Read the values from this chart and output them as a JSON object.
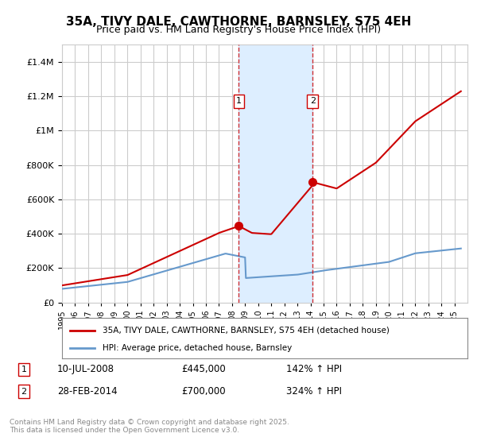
{
  "title": "35A, TIVY DALE, CAWTHORNE, BARNSLEY, S75 4EH",
  "subtitle": "Price paid vs. HM Land Registry's House Price Index (HPI)",
  "ylabel": "",
  "xlabel": "",
  "ylim": [
    0,
    1500000
  ],
  "yticks": [
    0,
    200000,
    400000,
    600000,
    800000,
    1000000,
    1200000,
    1400000
  ],
  "ytick_labels": [
    "£0",
    "£200K",
    "£400K",
    "£600K",
    "£800K",
    "£1M",
    "£1.2M",
    "£1.4M"
  ],
  "sale1_date": 2008.52,
  "sale1_price": 445000,
  "sale1_label": "1",
  "sale1_text": "10-JUL-2008",
  "sale1_price_text": "£445,000",
  "sale1_hpi_text": "142% ↑ HPI",
  "sale2_date": 2014.16,
  "sale2_price": 700000,
  "sale2_label": "2",
  "sale2_text": "28-FEB-2014",
  "sale2_price_text": "£700,000",
  "sale2_hpi_text": "324% ↑ HPI",
  "red_color": "#cc0000",
  "blue_color": "#6699cc",
  "shade_color": "#ddeeff",
  "grid_color": "#cccccc",
  "bg_color": "#ffffff",
  "legend_label_red": "35A, TIVY DALE, CAWTHORNE, BARNSLEY, S75 4EH (detached house)",
  "legend_label_blue": "HPI: Average price, detached house, Barnsley",
  "footer": "Contains HM Land Registry data © Crown copyright and database right 2025.\nThis data is licensed under the Open Government Licence v3.0.",
  "xmin": 1995,
  "xmax": 2026
}
